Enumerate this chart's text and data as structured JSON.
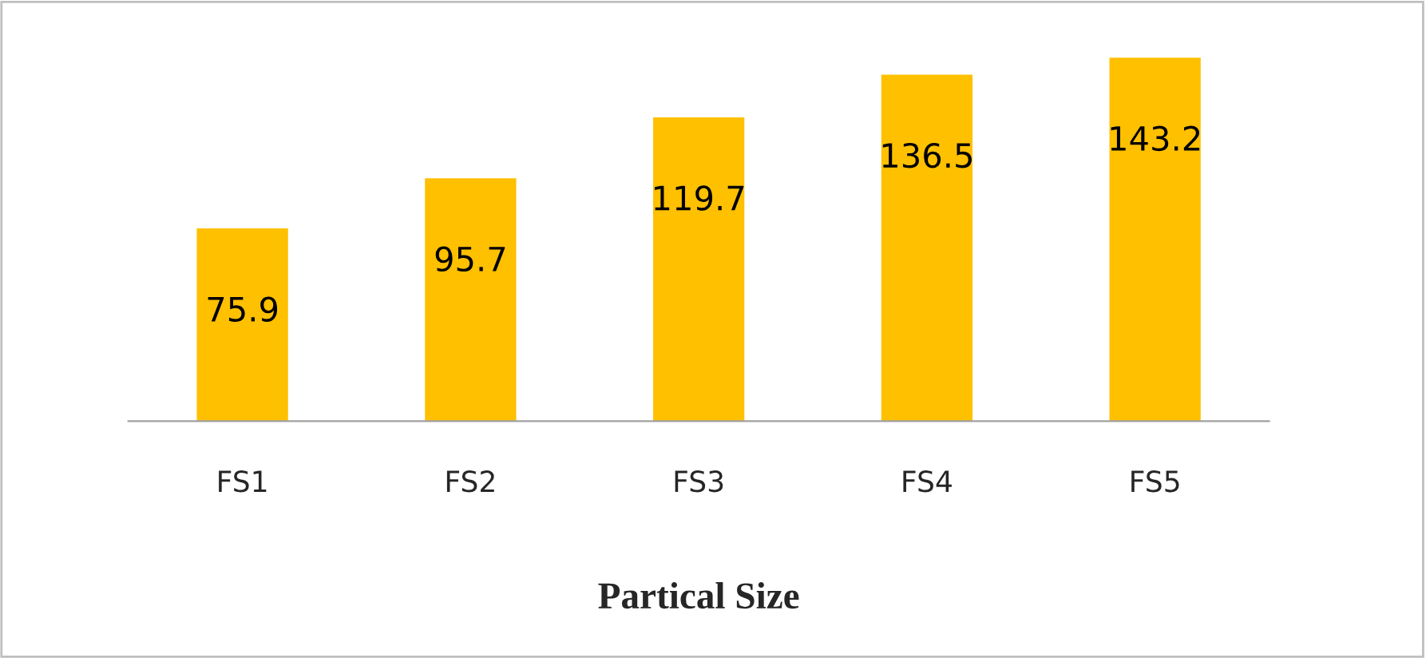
{
  "chart_data": {
    "type": "bar",
    "xlabel": "Partical Size",
    "categories": [
      "FS1",
      "FS2",
      "FS3",
      "FS4",
      "FS5"
    ],
    "values": [
      75.9,
      95.7,
      119.7,
      136.5,
      143.2
    ],
    "color": "#ffc000",
    "data_labels": true,
    "grid": false,
    "legend": false,
    "tick_labels": "x"
  }
}
